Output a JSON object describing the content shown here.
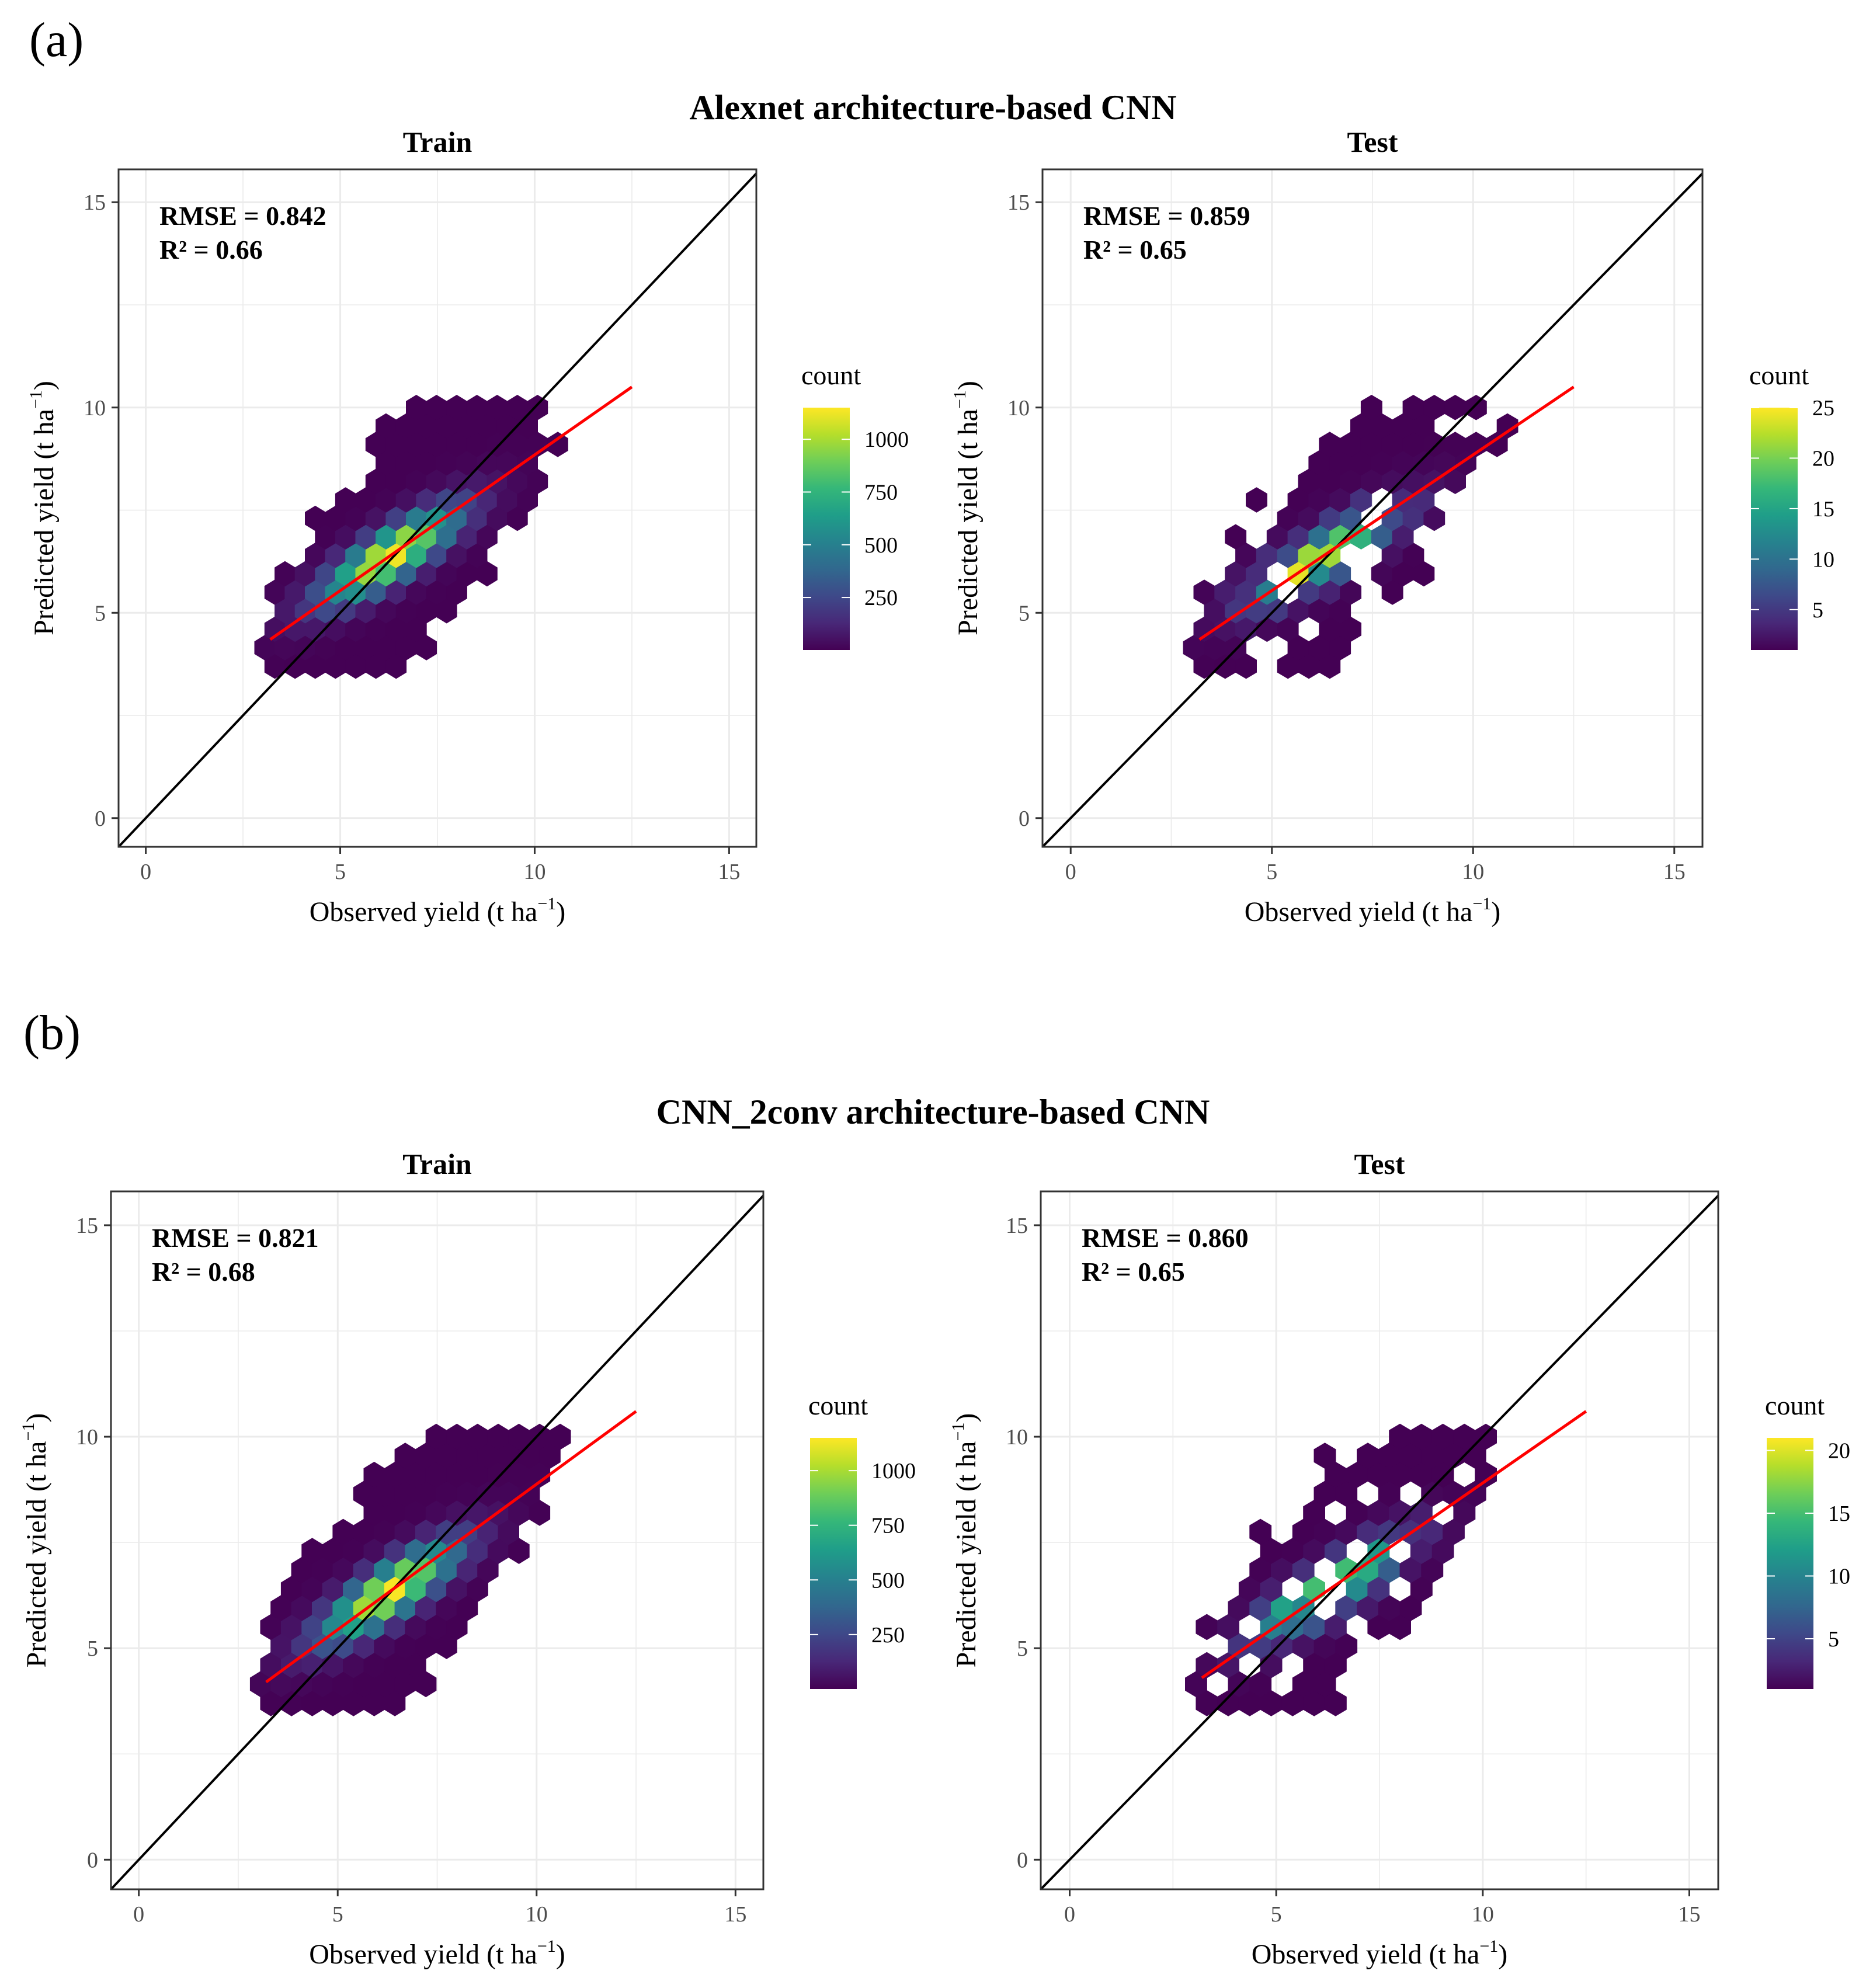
{
  "figure": {
    "panel_a_label": "(a)",
    "panel_b_label": "(b)",
    "section_a_title": "Alexnet architecture-based CNN",
    "section_b_title": "CNN_2conv architecture-based CNN",
    "colors": {
      "identity_line": "#000000",
      "fit_line": "#ff0000",
      "viridis": [
        "#440154",
        "#482878",
        "#3e4989",
        "#31688e",
        "#26828e",
        "#1f9e89",
        "#35b779",
        "#6ece58",
        "#b5de2b",
        "#fde725"
      ]
    }
  },
  "chart_data": [
    {
      "id": "a-train",
      "type": "hexbin",
      "title": "Train",
      "xlabel": "Observed yield (t ha",
      "ylabel": "Predicted yield (t ha",
      "unit_sup": "−1",
      "close_paren": ")",
      "xlim": [
        -0.7,
        15.7
      ],
      "ylim": [
        -0.7,
        15.8
      ],
      "xticks": [
        0,
        5,
        10,
        15
      ],
      "yticks": [
        0,
        5,
        10,
        15
      ],
      "rmse_text": "RMSE = 0.842",
      "r2_text": "R² = 0.66",
      "fit_line": {
        "x": [
          3.2,
          12.5
        ],
        "y": [
          4.35,
          10.5
        ]
      },
      "count_max": 1150,
      "legend": {
        "title": "count",
        "ticks": [
          250,
          500,
          750,
          1000
        ]
      }
    },
    {
      "id": "a-test",
      "type": "hexbin",
      "title": "Test",
      "xlabel": "Observed yield (t ha",
      "ylabel": "Predicted yield (t ha",
      "unit_sup": "−1",
      "close_paren": ")",
      "xlim": [
        -0.7,
        15.7
      ],
      "ylim": [
        -0.7,
        15.8
      ],
      "xticks": [
        0,
        5,
        10,
        15
      ],
      "yticks": [
        0,
        5,
        10,
        15
      ],
      "rmse_text": "RMSE = 0.859",
      "r2_text": "R² = 0.65",
      "fit_line": {
        "x": [
          3.2,
          12.5
        ],
        "y": [
          4.35,
          10.5
        ]
      },
      "count_max": 25,
      "legend": {
        "title": "count",
        "ticks": [
          5,
          10,
          15,
          20,
          25
        ]
      }
    },
    {
      "id": "b-train",
      "type": "hexbin",
      "title": "Train",
      "xlabel": "Observed yield (t ha",
      "ylabel": "Predicted yield (t ha",
      "unit_sup": "−1",
      "close_paren": ")",
      "xlim": [
        -0.7,
        15.7
      ],
      "ylim": [
        -0.7,
        15.8
      ],
      "xticks": [
        0,
        5,
        10,
        15
      ],
      "yticks": [
        0,
        5,
        10,
        15
      ],
      "rmse_text": "RMSE = 0.821",
      "r2_text": "R² = 0.68",
      "fit_line": {
        "x": [
          3.2,
          12.5
        ],
        "y": [
          4.2,
          10.6
        ]
      },
      "count_max": 1150,
      "legend": {
        "title": "count",
        "ticks": [
          250,
          500,
          750,
          1000
        ]
      }
    },
    {
      "id": "b-test",
      "type": "hexbin",
      "title": "Test",
      "xlabel": "Observed yield (t ha",
      "ylabel": "Predicted yield (t ha",
      "unit_sup": "−1",
      "close_paren": ")",
      "xlim": [
        -0.7,
        15.7
      ],
      "ylim": [
        -0.7,
        15.8
      ],
      "xticks": [
        0,
        5,
        10,
        15
      ],
      "yticks": [
        0,
        5,
        10,
        15
      ],
      "rmse_text": "RMSE = 0.860",
      "r2_text": "R² = 0.65",
      "fit_line": {
        "x": [
          3.2,
          12.5
        ],
        "y": [
          4.3,
          10.6
        ]
      },
      "count_max": 21,
      "legend": {
        "title": "count",
        "ticks": [
          5,
          10,
          15,
          20
        ]
      }
    }
  ]
}
